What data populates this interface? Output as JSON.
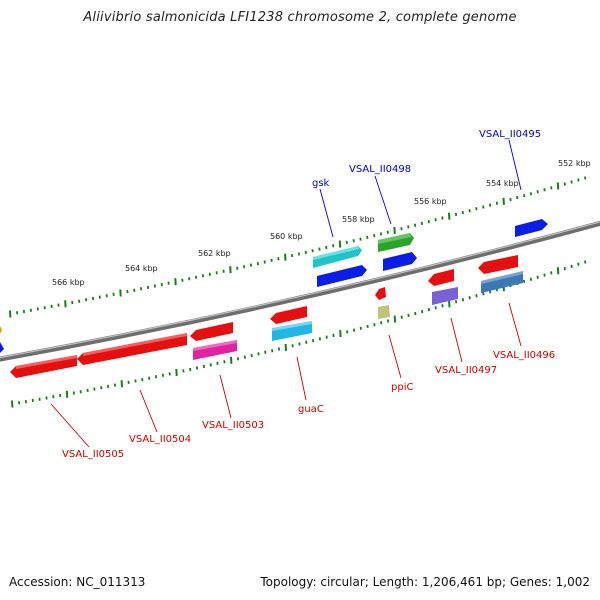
{
  "title": "Aliivibrio salmonicida LFI1238 chromosome 2, complete genome",
  "footer": {
    "accession": "Accession: NC_011313",
    "summary": "Topology: circular; Length: 1,206,461 bp; Genes: 1,002"
  },
  "colors": {
    "forward_label": "#0000cc",
    "reverse_label": "#cc0000",
    "tick": "#1e7a1e",
    "backbone": "#808080"
  },
  "ticks_kbp": [
    {
      "label": "566 kbp",
      "pos_kbp": 566
    },
    {
      "label": "564 kbp",
      "pos_kbp": 564
    },
    {
      "label": "562 kbp",
      "pos_kbp": 562
    },
    {
      "label": "560 kbp",
      "pos_kbp": 560
    },
    {
      "label": "558 kbp",
      "pos_kbp": 558
    },
    {
      "label": "556 kbp",
      "pos_kbp": 556
    },
    {
      "label": "554 kbp",
      "pos_kbp": 554
    },
    {
      "label": "552 kbp",
      "pos_kbp": 552
    }
  ],
  "gene_labels": {
    "forward": [
      {
        "name": "gsk",
        "color": "#0000cc"
      },
      {
        "name": "VSAL_II0498",
        "color": "#0000cc"
      },
      {
        "name": "VSAL_II0495",
        "color": "#0000cc"
      }
    ],
    "reverse": [
      {
        "name": "VSAL_II0505",
        "color": "#cc0000"
      },
      {
        "name": "VSAL_II0504",
        "color": "#cc0000"
      },
      {
        "name": "VSAL_II0503",
        "color": "#cc0000"
      },
      {
        "name": "guaC",
        "color": "#cc0000"
      },
      {
        "name": "ppiC",
        "color": "#cc0000"
      },
      {
        "name": "VSAL_II0497",
        "color": "#cc0000"
      },
      {
        "name": "VSAL_II0496",
        "color": "#cc0000"
      }
    ]
  }
}
